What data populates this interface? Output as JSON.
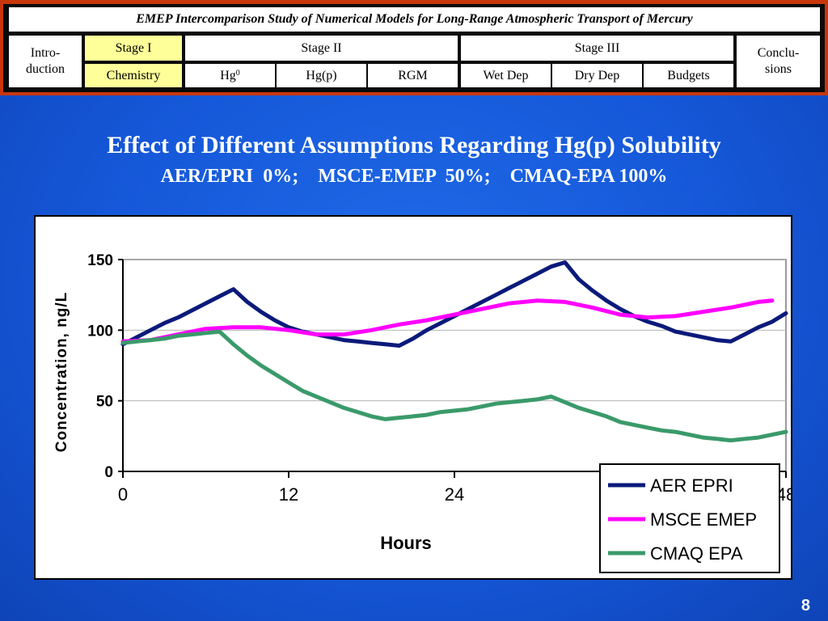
{
  "header": {
    "title": "EMEP Intercomparison Study of Numerical Models for Long-Range Atmospheric Transport of Mercury",
    "intro_line1": "Intro-",
    "intro_line2": "duction",
    "stage1": "Stage I",
    "stage2": "Stage II",
    "stage3": "Stage III",
    "conclu_line1": "Conclu-",
    "conclu_line2": "sions",
    "chemistry": "Chemistry",
    "hg0_base": "Hg",
    "hg0_sup": "0",
    "hgp": "Hg(p)",
    "rgm": "RGM",
    "wetdep": "Wet Dep",
    "drydep": "Dry Dep",
    "budgets": "Budgets"
  },
  "colors": {
    "frame": "#c8370c",
    "highlight": "#ffff99",
    "background": "#1557d8"
  },
  "slide": {
    "title": "Effect of Different Assumptions Regarding Hg(p) Solubility",
    "subtitle": "AER/EPRI  0%;    MSCE-EMEP  50%;    CMAQ-EPA 100%",
    "page_number": "8"
  },
  "chart_data": {
    "type": "line",
    "xlabel": "Hours",
    "ylabel": "Concentration, ng/L",
    "xlim": [
      0,
      48
    ],
    "ylim": [
      0,
      150
    ],
    "xticks": [
      "0",
      "12",
      "24",
      "36",
      "48"
    ],
    "yticks": [
      "0",
      "50",
      "100",
      "150"
    ],
    "legend_position": "bottom-right",
    "grid": "horizontal",
    "series": [
      {
        "name": "AER EPRI",
        "color": "#0b1a7a",
        "x": [
          0,
          1,
          2,
          3,
          4,
          5,
          6,
          7,
          8,
          9,
          10,
          11,
          12,
          13,
          14,
          15,
          16,
          17,
          18,
          19,
          20,
          21,
          22,
          23,
          24,
          25,
          26,
          27,
          28,
          29,
          30,
          31,
          32,
          33,
          34,
          35,
          36,
          37,
          38,
          39,
          40,
          41,
          42,
          43,
          44,
          45,
          46,
          47,
          48
        ],
        "y": [
          90,
          95,
          100,
          105,
          109,
          114,
          119,
          124,
          129,
          120,
          113,
          107,
          102,
          99,
          97,
          95,
          93,
          92,
          91,
          90,
          89,
          94,
          100,
          105,
          110,
          115,
          120,
          125,
          130,
          135,
          140,
          145,
          148,
          136,
          128,
          121,
          115,
          110,
          106,
          103,
          99,
          97,
          95,
          93,
          92,
          97,
          102,
          106,
          112
        ]
      },
      {
        "name": "MSCE EMEP",
        "color": "#ff00ff",
        "x": [
          0,
          2,
          4,
          6,
          8,
          10,
          12,
          14,
          16,
          18,
          20,
          22,
          24,
          26,
          28,
          30,
          32,
          34,
          36,
          38,
          40,
          42,
          44,
          46,
          47
        ],
        "y": [
          92,
          93,
          97,
          101,
          102,
          102,
          100,
          97,
          97,
          100,
          104,
          107,
          111,
          115,
          119,
          121,
          120,
          116,
          111,
          109,
          110,
          113,
          116,
          120,
          121
        ]
      },
      {
        "name": "CMAQ EPA",
        "color": "#3a9a6a",
        "x": [
          0,
          1,
          2,
          3,
          4,
          5,
          6,
          7,
          8,
          9,
          10,
          11,
          12,
          13,
          14,
          15,
          16,
          17,
          18,
          19,
          20,
          21,
          22,
          23,
          24,
          25,
          26,
          27,
          28,
          29,
          30,
          31,
          32,
          33,
          34,
          35,
          36,
          37,
          38,
          39,
          40,
          41,
          42,
          43,
          44,
          45,
          46,
          47,
          48
        ],
        "y": [
          91,
          92,
          93,
          94,
          96,
          97,
          98,
          99,
          90,
          82,
          75,
          69,
          63,
          57,
          53,
          49,
          45,
          42,
          39,
          37,
          38,
          39,
          40,
          42,
          43,
          44,
          46,
          48,
          49,
          50,
          51,
          53,
          49,
          45,
          42,
          39,
          35,
          33,
          31,
          29,
          28,
          26,
          24,
          23,
          22,
          23,
          24,
          26,
          28
        ]
      }
    ]
  }
}
